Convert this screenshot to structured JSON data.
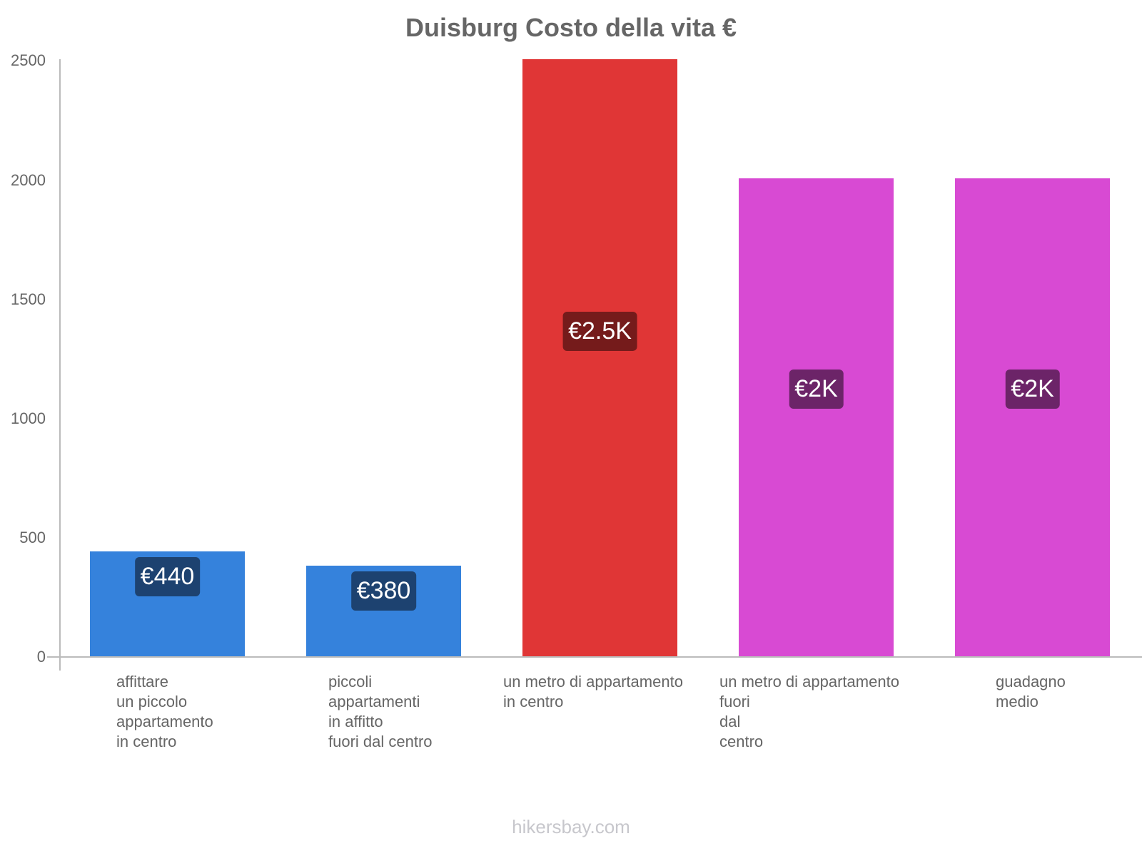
{
  "chart_data": {
    "type": "bar",
    "title": "Duisburg Costo della vita €",
    "xlabel": "",
    "ylabel": "",
    "ylim": [
      0,
      2500
    ],
    "yticks": [
      0,
      500,
      1000,
      1500,
      2000,
      2500
    ],
    "grid": false,
    "legend": null,
    "categories": [
      "affittare\nun piccolo\nappartamento\nin centro",
      "piccoli\nappartamenti\nin affitto\nfuori dal centro",
      "un metro di appartamento\nin centro",
      "un metro di appartamento\nfuori\ndal\ncentro",
      "guadagno\nmedio"
    ],
    "values": [
      440,
      380,
      2500,
      2000,
      2000
    ],
    "data_labels": [
      "€440",
      "€380",
      "€2.5K",
      "€2K",
      "€2K"
    ],
    "colors": [
      "#3582dc",
      "#3582dc",
      "#e03636",
      "#d84ad3",
      "#d84ad3"
    ],
    "label_colors": [
      "#1d4270",
      "#1d4270",
      "#751b1b",
      "#6c2468",
      "#6c2468"
    ]
  },
  "title": "Duisburg Costo della vita €",
  "y_ticks": [
    "0",
    "500",
    "1000",
    "1500",
    "2000",
    "2500"
  ],
  "footer": "hikersbay.com"
}
